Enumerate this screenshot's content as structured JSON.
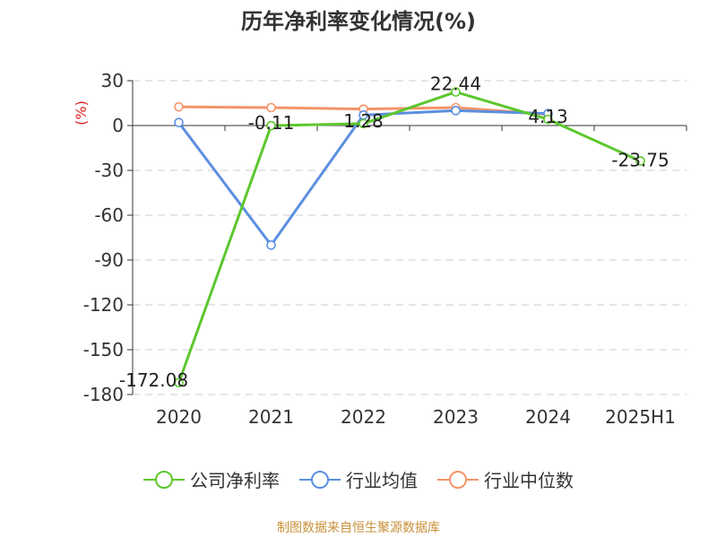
{
  "title": "历年净利率变化情况(%)",
  "source": "制图数据来自恒生聚源数据库",
  "chart_data": {
    "type": "line",
    "categories": [
      "2020",
      "2021",
      "2022",
      "2023",
      "2024",
      "2025H1"
    ],
    "ylabel": "(%)",
    "ylim": [
      -180,
      30
    ],
    "yticks": [
      30,
      0,
      -30,
      -60,
      -90,
      -120,
      -150,
      -180
    ],
    "grid": true,
    "legend_position": "bottom",
    "series": [
      {
        "name": "公司净利率",
        "color": "#5dc72e",
        "values": [
          -172.08,
          -0.11,
          1.28,
          22.44,
          4.13,
          -23.75
        ],
        "labels": [
          "-172.08",
          "-0.11",
          "1.28",
          "22.44",
          "4.13",
          "-23.75"
        ]
      },
      {
        "name": "行业均值",
        "color": "#5b8fe0",
        "values": [
          2,
          -80,
          7,
          10,
          8,
          null
        ]
      },
      {
        "name": "行业中位数",
        "color": "#f4956a",
        "values": [
          12.5,
          12,
          11,
          12,
          7.5,
          null
        ]
      }
    ]
  }
}
